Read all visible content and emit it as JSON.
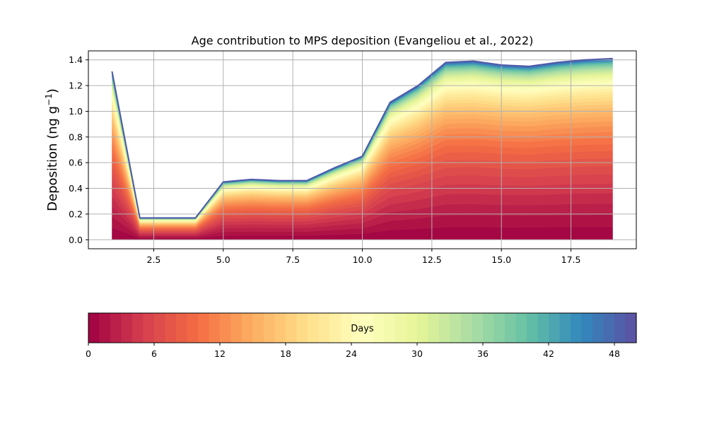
{
  "chart_data": {
    "type": "area",
    "title": "Age contribution to MPS deposition (Evangeliou et al., 2022)",
    "xlabel": "",
    "ylabel": "Deposition (ng g⁻¹)",
    "ylabel_main": "Deposition (ng g",
    "ylabel_sup": "−1",
    "ylabel_close": ")",
    "xlim": [
      0.15,
      19.85
    ],
    "ylim": [
      -0.07,
      1.47
    ],
    "grid": true,
    "x": [
      1,
      2,
      3,
      4,
      5,
      6,
      7,
      8,
      9,
      10,
      11,
      12,
      13,
      14,
      15,
      16,
      17,
      18,
      19
    ],
    "total": [
      1.31,
      0.17,
      0.17,
      0.17,
      0.45,
      0.47,
      0.46,
      0.46,
      0.56,
      0.65,
      1.07,
      1.2,
      1.38,
      1.39,
      1.36,
      1.35,
      1.38,
      1.4,
      1.41
    ],
    "x_ticks": [
      2.5,
      5.0,
      7.5,
      10.0,
      12.5,
      15.0,
      17.5
    ],
    "x_tick_labels": [
      "2.5",
      "5.0",
      "7.5",
      "10.0",
      "12.5",
      "15.0",
      "17.5"
    ],
    "y_ticks": [
      0.0,
      0.2,
      0.4,
      0.6,
      0.8,
      1.0,
      1.2,
      1.4
    ],
    "y_tick_labels": [
      "0.0",
      "0.2",
      "0.4",
      "0.6",
      "0.8",
      "1.0",
      "1.2",
      "1.4"
    ],
    "colorbar": {
      "label": "Days",
      "colormap": "Spectral",
      "range": [
        0,
        50
      ],
      "ticks": [
        0,
        6,
        12,
        18,
        24,
        30,
        36,
        42,
        48
      ],
      "tick_labels": [
        "0",
        "6",
        "12",
        "18",
        "24",
        "30",
        "36",
        "42",
        "48"
      ]
    }
  }
}
